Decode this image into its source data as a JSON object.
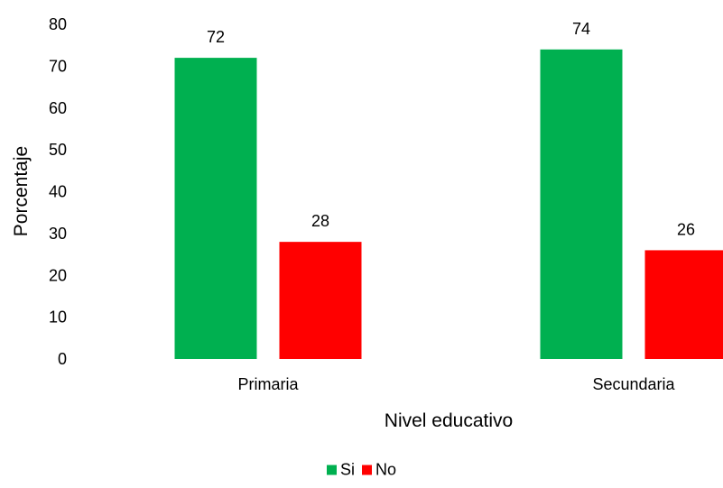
{
  "chart_data": {
    "type": "bar",
    "categories": [
      "Primaria",
      "Secundaria"
    ],
    "series": [
      {
        "name": "Si",
        "values": [
          72,
          74
        ],
        "color": "#00b050"
      },
      {
        "name": "No",
        "values": [
          28,
          26
        ],
        "color": "#ff0000"
      }
    ],
    "title": "",
    "xlabel": "Nivel educativo",
    "ylabel": "Porcentaje",
    "ylim": [
      0,
      80
    ],
    "yticks": [
      "0",
      "10",
      "20",
      "30",
      "40",
      "50",
      "60",
      "70",
      "80"
    ],
    "data_labels": true,
    "grid": false,
    "legend": "bottom"
  }
}
